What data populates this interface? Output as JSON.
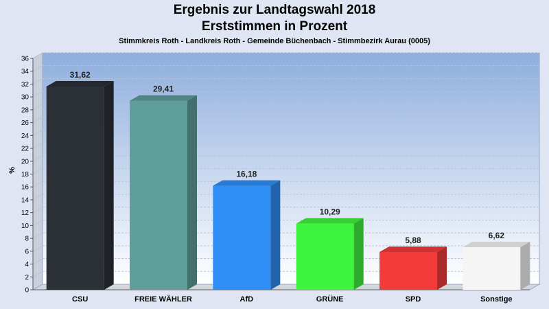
{
  "header": {
    "title_line1": "Ergebnis zur Landtagswahl 2018",
    "title_line2": "Erststimmen in Prozent",
    "subtitle": "Stimmkreis Roth - Landkreis Roth - Gemeinde Büchenbach - Stimmbezirk Aurau (0005)"
  },
  "chart_data": {
    "type": "bar",
    "title": "Ergebnis zur Landtagswahl 2018",
    "subtitle": "Erststimmen in Prozent",
    "ylabel": "%",
    "xlabel": "",
    "ylim": [
      0,
      36
    ],
    "yticks": [
      0,
      2,
      4,
      6,
      8,
      10,
      12,
      14,
      16,
      18,
      20,
      22,
      24,
      26,
      28,
      30,
      32,
      34,
      36
    ],
    "grid": true,
    "categories": [
      "CSU",
      "FREIE WÄHLER",
      "AfD",
      "GRÜNE",
      "SPD",
      "Sonstige"
    ],
    "values": [
      31.62,
      29.41,
      16.18,
      10.29,
      5.88,
      6.62
    ],
    "value_labels": [
      "31,62",
      "29,41",
      "16,18",
      "10,29",
      "5,88",
      "6,62"
    ],
    "colors": [
      "#2b2f36",
      "#5f9e9c",
      "#2f8ff7",
      "#3ff43f",
      "#f33b3b",
      "#f5f5f5"
    ]
  }
}
